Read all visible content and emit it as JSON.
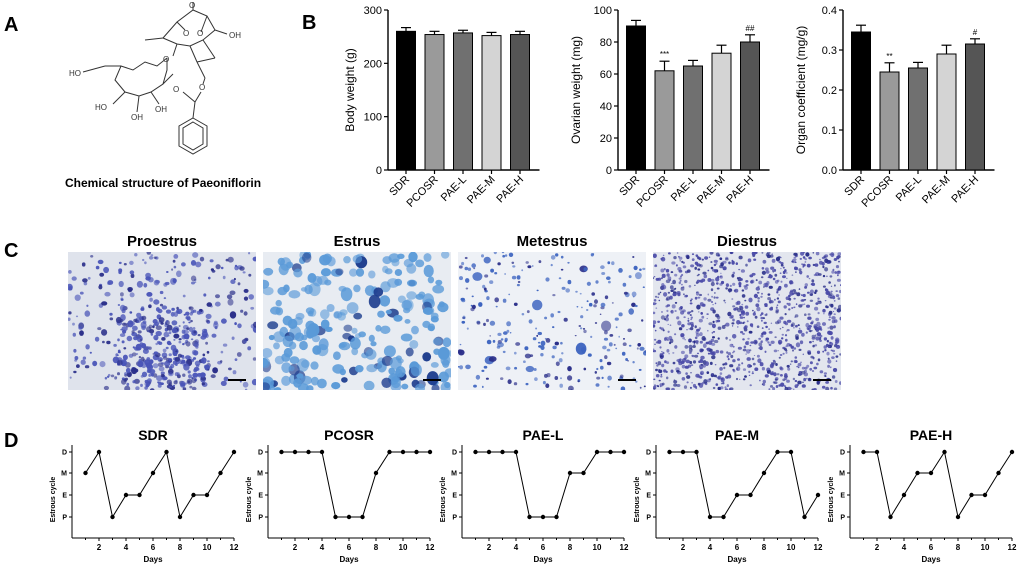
{
  "panels": {
    "a": "A",
    "b": "B",
    "c": "C",
    "d": "D"
  },
  "structure": {
    "caption": "Chemical structure of Paeoniflorin",
    "labels": [
      "O",
      "O",
      "O",
      "OH",
      "HO",
      "O",
      "O",
      "HO",
      "OH",
      "OH",
      "O"
    ]
  },
  "bar_charts": [
    {
      "type": "bar",
      "ylabel": "Body weight (g)",
      "ylim": [
        0,
        300
      ],
      "yticks": [
        0,
        100,
        200,
        300
      ],
      "categories": [
        "SDR",
        "PCOSR",
        "PAE-L",
        "PAE-M",
        "PAE-H"
      ],
      "values": [
        260,
        254,
        257,
        252,
        254
      ],
      "errors": [
        7,
        6,
        5,
        6,
        6
      ],
      "annotations": [
        "",
        "",
        "",
        "",
        ""
      ]
    },
    {
      "type": "bar",
      "ylabel": "Ovarian weight (mg)",
      "ylim": [
        0,
        100
      ],
      "yticks": [
        0,
        20,
        40,
        60,
        80,
        100
      ],
      "categories": [
        "SDR",
        "PCOSR",
        "PAE-L",
        "PAE-M",
        "PAE-H"
      ],
      "values": [
        90,
        62,
        65,
        73,
        80
      ],
      "errors": [
        3.5,
        6,
        3.5,
        5,
        4.5
      ],
      "annotations": [
        "",
        "***",
        "",
        "",
        "##"
      ]
    },
    {
      "type": "bar",
      "ylabel": "Organ coefficient (mg/g)",
      "ylim": [
        0,
        0.4
      ],
      "yticks": [
        0.0,
        0.1,
        0.2,
        0.3,
        0.4
      ],
      "categories": [
        "SDR",
        "PCOSR",
        "PAE-L",
        "PAE-M",
        "PAE-H"
      ],
      "values": [
        0.345,
        0.245,
        0.255,
        0.29,
        0.315
      ],
      "errors": [
        0.017,
        0.023,
        0.014,
        0.022,
        0.013
      ],
      "annotations": [
        "",
        "**",
        "",
        "",
        "#"
      ]
    }
  ],
  "micrographs": [
    {
      "title": "Proestrus",
      "stain_color": "#4a55b8",
      "background": "#dfe3ec"
    },
    {
      "title": "Estrus",
      "stain_color": "#3d6fc0",
      "background": "#e8ecf2"
    },
    {
      "title": "Metestrus",
      "stain_color": "#3d64c0",
      "background": "#eef1f6"
    },
    {
      "title": "Diestrus",
      "stain_color": "#4a4aa8",
      "background": "#e3e6ee"
    }
  ],
  "chart_data": [
    {
      "type": "line",
      "title": "SDR",
      "xlabel": "Days",
      "ylabel": "Estrous cycle",
      "x": [
        1,
        2,
        3,
        4,
        5,
        6,
        7,
        8,
        9,
        10,
        11,
        12
      ],
      "y": [
        "M",
        "D",
        "P",
        "E",
        "E",
        "M",
        "D",
        "P",
        "E",
        "E",
        "M",
        "D"
      ],
      "y_levels": [
        "P",
        "E",
        "M",
        "D"
      ],
      "xticks": [
        2,
        4,
        6,
        8,
        10,
        12
      ]
    },
    {
      "type": "line",
      "title": "PCOSR",
      "xlabel": "Days",
      "ylabel": "Estrous cycle",
      "x": [
        1,
        2,
        3,
        4,
        5,
        6,
        7,
        8,
        9,
        10,
        11,
        12
      ],
      "y": [
        "D",
        "D",
        "D",
        "D",
        "P",
        "P",
        "P",
        "M",
        "D",
        "D",
        "D",
        "D"
      ],
      "y_levels": [
        "P",
        "E",
        "M",
        "D"
      ],
      "xticks": [
        2,
        4,
        6,
        8,
        10,
        12
      ]
    },
    {
      "type": "line",
      "title": "PAE-L",
      "xlabel": "Days",
      "ylabel": "Estrous cycle",
      "x": [
        1,
        2,
        3,
        4,
        5,
        6,
        7,
        8,
        9,
        10,
        11,
        12
      ],
      "y": [
        "D",
        "D",
        "D",
        "D",
        "P",
        "P",
        "P",
        "M",
        "M",
        "D",
        "D",
        "D"
      ],
      "y_levels": [
        "P",
        "E",
        "M",
        "D"
      ],
      "xticks": [
        2,
        4,
        6,
        8,
        10,
        12
      ]
    },
    {
      "type": "line",
      "title": "PAE-M",
      "xlabel": "Days",
      "ylabel": "Estrous cycle",
      "x": [
        1,
        2,
        3,
        4,
        5,
        6,
        7,
        8,
        9,
        10,
        11,
        12
      ],
      "y": [
        "D",
        "D",
        "D",
        "P",
        "P",
        "E",
        "E",
        "M",
        "D",
        "D",
        "P",
        "E"
      ],
      "y_levels": [
        "P",
        "E",
        "M",
        "D"
      ],
      "xticks": [
        2,
        4,
        6,
        8,
        10,
        12
      ]
    },
    {
      "type": "line",
      "title": "PAE-H",
      "xlabel": "Days",
      "ylabel": "Estrous cycle",
      "x": [
        1,
        2,
        3,
        4,
        5,
        6,
        7,
        8,
        9,
        10,
        11,
        12
      ],
      "y": [
        "D",
        "D",
        "P",
        "E",
        "M",
        "M",
        "D",
        "P",
        "E",
        "E",
        "M",
        "D"
      ],
      "y_levels": [
        "P",
        "E",
        "M",
        "D"
      ],
      "xticks": [
        2,
        4,
        6,
        8,
        10,
        12
      ]
    }
  ]
}
